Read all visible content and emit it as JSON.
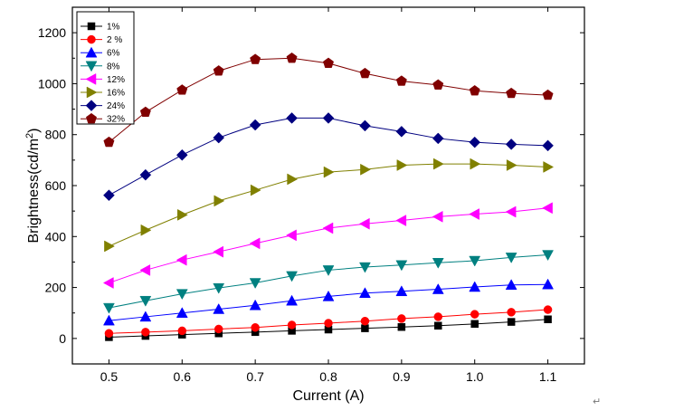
{
  "chart_data": {
    "type": "line",
    "xlabel": "Current (A)",
    "ylabel_main": "Brightness(cd/m",
    "ylabel_sup": "2",
    "ylabel_end": ")",
    "xlim": [
      0.45,
      1.15
    ],
    "ylim": [
      -100,
      1300
    ],
    "xticks": [
      0.5,
      0.6,
      0.7,
      0.8,
      0.9,
      1.0,
      1.1
    ],
    "xtick_labels": [
      "0.5",
      "0.6",
      "0.7",
      "0.8",
      "0.9",
      "1.0",
      "1.1"
    ],
    "yticks": [
      0,
      200,
      400,
      600,
      800,
      1000,
      1200
    ],
    "ytick_labels": [
      "0",
      "200",
      "400",
      "600",
      "800",
      "1000",
      "1200"
    ],
    "grid": false,
    "legend_position": "top-left",
    "x": [
      0.5,
      0.55,
      0.6,
      0.65,
      0.7,
      0.75,
      0.8,
      0.85,
      0.9,
      0.95,
      1.0,
      1.05,
      1.1
    ],
    "series": [
      {
        "name": "1%",
        "color": "#000000",
        "marker": "square",
        "values": [
          5,
          10,
          15,
          20,
          25,
          30,
          35,
          40,
          45,
          50,
          57,
          65,
          75
        ]
      },
      {
        "name": "2 %",
        "color": "#ff0000",
        "marker": "circle",
        "values": [
          20,
          25,
          30,
          37,
          43,
          53,
          60,
          68,
          78,
          85,
          95,
          103,
          113
        ]
      },
      {
        "name": "6%",
        "color": "#0000ff",
        "marker": "triangle-up",
        "values": [
          70,
          85,
          100,
          115,
          130,
          148,
          165,
          178,
          185,
          193,
          202,
          210,
          212
        ]
      },
      {
        "name": "8%",
        "color": "#008080",
        "marker": "triangle-down",
        "values": [
          120,
          148,
          175,
          198,
          218,
          245,
          268,
          280,
          288,
          297,
          305,
          318,
          328
        ]
      },
      {
        "name": "12%",
        "color": "#ff00ff",
        "marker": "triangle-left",
        "values": [
          218,
          268,
          308,
          340,
          373,
          405,
          433,
          450,
          463,
          478,
          488,
          497,
          512
        ]
      },
      {
        "name": "16%",
        "color": "#808000",
        "marker": "triangle-right",
        "values": [
          362,
          425,
          485,
          540,
          582,
          625,
          653,
          663,
          680,
          685,
          685,
          680,
          673
        ]
      },
      {
        "name": "24%",
        "color": "#000080",
        "marker": "diamond",
        "values": [
          562,
          642,
          720,
          788,
          838,
          865,
          865,
          835,
          812,
          785,
          770,
          762,
          757
        ]
      },
      {
        "name": "32%",
        "color": "#800000",
        "marker": "pentagon",
        "values": [
          770,
          888,
          975,
          1050,
          1095,
          1100,
          1080,
          1040,
          1010,
          995,
          972,
          962,
          955
        ]
      }
    ]
  },
  "return_mark": "↵"
}
